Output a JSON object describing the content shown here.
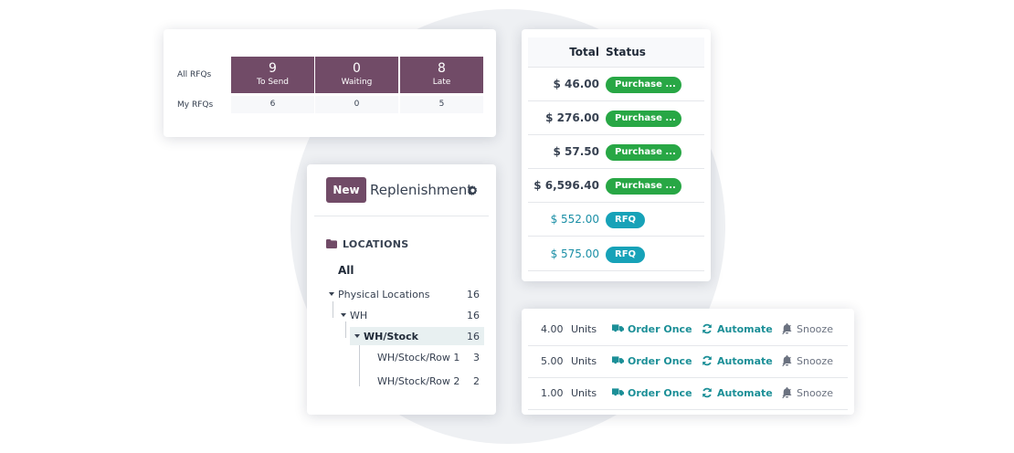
{
  "rfq_summary": {
    "row_labels": [
      "All RFQs",
      "My RFQs"
    ],
    "boxes": [
      {
        "count": "9",
        "label": "To Send",
        "mine": "6"
      },
      {
        "count": "0",
        "label": "Waiting",
        "mine": "0"
      },
      {
        "count": "8",
        "label": "Late",
        "mine": "5"
      }
    ],
    "accent": "#714b67"
  },
  "purchase_table": {
    "headers": {
      "total": "Total",
      "status": "Status"
    },
    "rows": [
      {
        "total": "$ 46.00",
        "status": "Purchase ...",
        "kind": "purchase"
      },
      {
        "total": "$ 276.00",
        "status": "Purchase ...",
        "kind": "purchase"
      },
      {
        "total": "$ 57.50",
        "status": "Purchase ...",
        "kind": "purchase"
      },
      {
        "total": "$ 6,596.40",
        "status": "Purchase ...",
        "kind": "purchase"
      },
      {
        "total": "$ 552.00",
        "status": "RFQ",
        "kind": "rfq"
      },
      {
        "total": "$ 575.00",
        "status": "RFQ",
        "kind": "rfq"
      }
    ],
    "colors": {
      "purchase": "#28a745",
      "rfq": "#17a2b8"
    }
  },
  "replenishment": {
    "new_label": "New",
    "title": "Replenishment",
    "settings_icon": "gear-icon",
    "locations_heading": "LOCATIONS",
    "all_label": "All",
    "tree": [
      {
        "label": "Physical Locations",
        "count": "16"
      },
      {
        "label": "WH",
        "count": "16"
      },
      {
        "label": "WH/Stock",
        "count": "16"
      },
      {
        "label": "WH/Stock/Row 1",
        "count": "3"
      },
      {
        "label": "WH/Stock/Row 2",
        "count": "2"
      }
    ]
  },
  "actions": {
    "rows": [
      {
        "qty": "4.00",
        "uom": "Units"
      },
      {
        "qty": "5.00",
        "uom": "Units"
      },
      {
        "qty": "1.00",
        "uom": "Units"
      }
    ],
    "order_once": "Order Once",
    "automate": "Automate",
    "snooze": "Snooze"
  }
}
